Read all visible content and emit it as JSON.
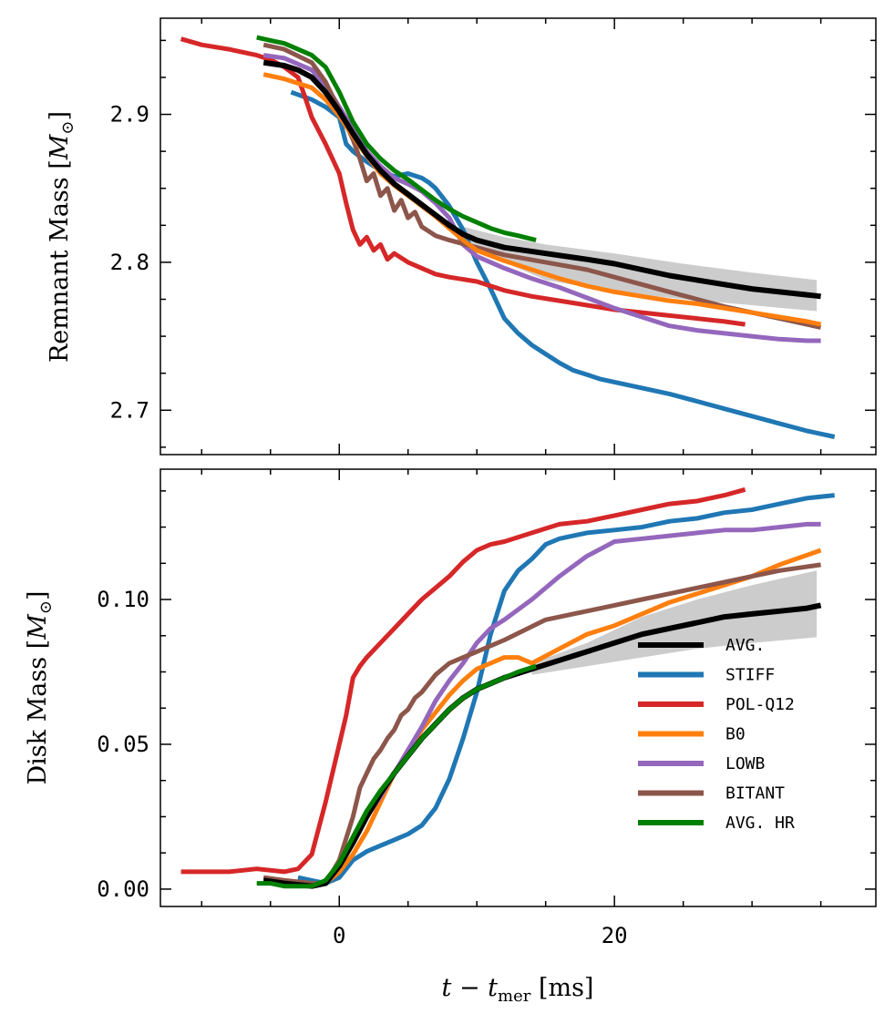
{
  "chart_data": [
    {
      "type": "line",
      "panel": "top",
      "title": "",
      "xlabel": "",
      "ylabel": "Remnant Mass [M_⊙]",
      "ylabel_text": "Remnant Mass ",
      "ylabel_unit": "M",
      "ylabel_sub": "⊙",
      "xlim": [
        -13,
        39
      ],
      "ylim": [
        2.67,
        2.965
      ],
      "yticks": [
        2.7,
        2.8,
        2.9
      ],
      "ytick_labels": [
        "2.7",
        "2.8",
        "2.9"
      ],
      "band": {
        "name": "AVG. spread",
        "color": "#cccccc",
        "x": [
          9,
          12,
          15,
          20,
          25,
          30,
          34.7
        ],
        "upper": [
          2.824,
          2.817,
          2.812,
          2.806,
          2.799,
          2.793,
          2.788
        ],
        "lower": [
          2.813,
          2.8,
          2.788,
          2.78,
          2.775,
          2.771,
          2.767
        ]
      },
      "series": [
        {
          "name": "STIFF",
          "color": "#1f77b4",
          "x": [
            -3.5,
            -2,
            -1,
            0,
            0.5,
            1,
            2,
            3,
            4,
            5,
            6,
            6.5,
            7,
            8,
            9,
            10,
            11,
            12,
            13,
            14,
            15,
            16,
            17,
            18,
            19,
            20,
            22,
            24,
            26,
            28,
            30,
            32,
            34,
            36
          ],
          "y": [
            2.915,
            2.91,
            2.905,
            2.898,
            2.88,
            2.875,
            2.868,
            2.862,
            2.858,
            2.86,
            2.857,
            2.854,
            2.85,
            2.838,
            2.822,
            2.8,
            2.782,
            2.762,
            2.752,
            2.744,
            2.738,
            2.732,
            2.727,
            2.724,
            2.721,
            2.719,
            2.715,
            2.711,
            2.706,
            2.701,
            2.696,
            2.691,
            2.686,
            2.682
          ]
        },
        {
          "name": "POL-Q12",
          "color": "#d62728",
          "x": [
            -11.5,
            -10,
            -8,
            -6,
            -5,
            -4,
            -3,
            -2.5,
            -2,
            -1,
            0,
            0.5,
            1,
            1.5,
            2,
            2.5,
            3,
            3.5,
            4,
            5,
            6,
            7,
            8,
            10,
            12,
            14,
            16,
            18,
            20,
            22,
            24,
            26,
            28,
            29.5
          ],
          "y": [
            2.951,
            2.947,
            2.944,
            2.94,
            2.937,
            2.932,
            2.925,
            2.912,
            2.898,
            2.88,
            2.86,
            2.84,
            2.822,
            2.812,
            2.817,
            2.808,
            2.812,
            2.802,
            2.806,
            2.8,
            2.796,
            2.792,
            2.79,
            2.787,
            2.781,
            2.777,
            2.774,
            2.771,
            2.768,
            2.766,
            2.764,
            2.762,
            2.76,
            2.758
          ]
        },
        {
          "name": "LOWB",
          "color": "#9467bd",
          "x": [
            -5.5,
            -4,
            -2,
            -1,
            0,
            1,
            2,
            3,
            4,
            5,
            6,
            7,
            8,
            9,
            10,
            12,
            14,
            16,
            18,
            20,
            22,
            24,
            26,
            28,
            30,
            32,
            34,
            35
          ],
          "y": [
            2.94,
            2.938,
            2.93,
            2.92,
            2.905,
            2.89,
            2.875,
            2.865,
            2.857,
            2.853,
            2.848,
            2.84,
            2.83,
            2.812,
            2.804,
            2.796,
            2.789,
            2.783,
            2.776,
            2.769,
            2.763,
            2.757,
            2.754,
            2.752,
            2.75,
            2.748,
            2.747,
            2.747
          ]
        },
        {
          "name": "BITANT",
          "color": "#8c564b",
          "x": [
            -5.5,
            -4,
            -2,
            -1,
            0,
            1,
            1.5,
            2,
            2.5,
            3,
            3.5,
            4,
            4.5,
            5,
            5.5,
            6,
            7,
            8,
            10,
            12,
            15,
            18,
            20,
            22,
            24,
            26,
            28,
            30,
            32,
            35
          ],
          "y": [
            2.947,
            2.944,
            2.935,
            2.922,
            2.903,
            2.883,
            2.87,
            2.855,
            2.86,
            2.845,
            2.85,
            2.835,
            2.842,
            2.83,
            2.834,
            2.824,
            2.818,
            2.815,
            2.81,
            2.805,
            2.8,
            2.795,
            2.79,
            2.785,
            2.78,
            2.775,
            2.77,
            2.766,
            2.762,
            2.756
          ]
        },
        {
          "name": "B0",
          "color": "#ff7f0e",
          "x": [
            -5.5,
            -4,
            -2,
            -1,
            0,
            1,
            2,
            3,
            4,
            5,
            6,
            7,
            8,
            9,
            10,
            12,
            14,
            16,
            18,
            20,
            22,
            24,
            26,
            28,
            30,
            32,
            34,
            35
          ],
          "y": [
            2.927,
            2.924,
            2.918,
            2.91,
            2.899,
            2.885,
            2.872,
            2.86,
            2.852,
            2.845,
            2.838,
            2.831,
            2.823,
            2.815,
            2.808,
            2.801,
            2.795,
            2.789,
            2.784,
            2.78,
            2.777,
            2.774,
            2.772,
            2.769,
            2.766,
            2.763,
            2.76,
            2.758
          ]
        },
        {
          "name": "AVG.",
          "color": "#000000",
          "x": [
            -5.5,
            -4,
            -3,
            -2,
            -1,
            0,
            1,
            2,
            3,
            4,
            5,
            6,
            7,
            8,
            9,
            10,
            12,
            15,
            18,
            20,
            22,
            24,
            26,
            28,
            30,
            32,
            34,
            35
          ],
          "y": [
            2.935,
            2.933,
            2.93,
            2.925,
            2.915,
            2.902,
            2.887,
            2.873,
            2.862,
            2.853,
            2.846,
            2.839,
            2.832,
            2.825,
            2.819,
            2.815,
            2.81,
            2.806,
            2.802,
            2.799,
            2.795,
            2.791,
            2.788,
            2.785,
            2.782,
            2.78,
            2.778,
            2.777
          ]
        },
        {
          "name": "AVG. HR",
          "color": "#008000",
          "x": [
            -6,
            -5,
            -4,
            -3,
            -2,
            -1,
            0,
            1,
            2,
            3,
            4,
            5,
            6,
            7,
            8,
            9,
            10,
            11,
            12,
            13,
            14.3
          ],
          "y": [
            2.952,
            2.95,
            2.948,
            2.944,
            2.94,
            2.932,
            2.915,
            2.895,
            2.88,
            2.87,
            2.862,
            2.856,
            2.849,
            2.842,
            2.836,
            2.831,
            2.827,
            2.823,
            2.82,
            2.818,
            2.815
          ]
        }
      ]
    },
    {
      "type": "line",
      "panel": "bottom",
      "title": "",
      "xlabel": "t − t_mer [ms]",
      "xlabel_t": "t",
      "xlabel_minus": " − ",
      "xlabel_tmer": "t",
      "xlabel_sub": "mer",
      "xlabel_unit": " [ms]",
      "ylabel": "Disk Mass [M_⊙]",
      "ylabel_text": "Disk Mass ",
      "ylabel_unit": "M",
      "ylabel_sub": "⊙",
      "xlim": [
        -13,
        39
      ],
      "ylim": [
        -0.006,
        0.145
      ],
      "xticks": [
        0,
        20
      ],
      "xtick_labels": [
        "0",
        "20"
      ],
      "yticks": [
        0.0,
        0.05,
        0.1
      ],
      "ytick_labels": [
        "0.00",
        "0.05",
        "0.10"
      ],
      "band": {
        "name": "AVG. spread",
        "color": "#cccccc",
        "x": [
          14,
          18,
          22,
          26,
          30,
          34.7
        ],
        "upper": [
          0.078,
          0.085,
          0.094,
          0.1,
          0.105,
          0.11
        ],
        "lower": [
          0.074,
          0.077,
          0.08,
          0.083,
          0.085,
          0.087
        ]
      },
      "series": [
        {
          "name": "STIFF",
          "color": "#1f77b4",
          "x": [
            -3,
            -2,
            -1,
            0,
            0.5,
            1,
            2,
            3,
            4,
            5,
            6,
            7,
            8,
            9,
            10,
            11,
            12,
            13,
            14,
            15,
            16,
            18,
            20,
            22,
            24,
            26,
            28,
            30,
            32,
            34,
            36
          ],
          "y": [
            0.004,
            0.003,
            0.002,
            0.004,
            0.007,
            0.01,
            0.013,
            0.015,
            0.017,
            0.019,
            0.022,
            0.028,
            0.038,
            0.052,
            0.068,
            0.088,
            0.103,
            0.11,
            0.114,
            0.119,
            0.121,
            0.123,
            0.124,
            0.125,
            0.127,
            0.128,
            0.13,
            0.131,
            0.133,
            0.135,
            0.136
          ]
        },
        {
          "name": "POL-Q12",
          "color": "#d62728",
          "x": [
            -11.5,
            -10,
            -8,
            -6,
            -4,
            -3,
            -2,
            -1,
            0,
            0.5,
            1,
            1.5,
            2,
            3,
            4,
            5,
            6,
            7,
            8,
            9,
            10,
            11,
            12,
            14,
            16,
            18,
            20,
            22,
            24,
            26,
            28,
            29.5
          ],
          "y": [
            0.006,
            0.006,
            0.006,
            0.007,
            0.006,
            0.007,
            0.012,
            0.03,
            0.05,
            0.06,
            0.073,
            0.077,
            0.08,
            0.085,
            0.09,
            0.095,
            0.1,
            0.104,
            0.108,
            0.113,
            0.117,
            0.119,
            0.12,
            0.123,
            0.126,
            0.127,
            0.129,
            0.131,
            0.133,
            0.134,
            0.136,
            0.138
          ]
        },
        {
          "name": "B0",
          "color": "#ff7f0e",
          "x": [
            -5.5,
            -4,
            -2,
            -1,
            0,
            1,
            2,
            3,
            4,
            5,
            6,
            7,
            8,
            9,
            10,
            11,
            12,
            13,
            14,
            16,
            18,
            20,
            22,
            24,
            26,
            28,
            30,
            32,
            35
          ],
          "y": [
            0.004,
            0.003,
            0.002,
            0.002,
            0.006,
            0.012,
            0.02,
            0.03,
            0.04,
            0.048,
            0.055,
            0.061,
            0.067,
            0.072,
            0.076,
            0.078,
            0.08,
            0.08,
            0.078,
            0.083,
            0.088,
            0.091,
            0.095,
            0.099,
            0.102,
            0.105,
            0.108,
            0.112,
            0.117
          ]
        },
        {
          "name": "LOWB",
          "color": "#9467bd",
          "x": [
            -5.5,
            -4,
            -2,
            -1,
            0,
            1,
            2,
            3,
            4,
            5,
            6,
            7,
            8,
            9,
            10,
            11,
            12,
            14,
            16,
            18,
            20,
            22,
            24,
            26,
            28,
            30,
            32,
            34,
            35
          ],
          "y": [
            0.003,
            0.002,
            0.002,
            0.002,
            0.008,
            0.016,
            0.025,
            0.032,
            0.04,
            0.048,
            0.056,
            0.065,
            0.072,
            0.078,
            0.085,
            0.09,
            0.093,
            0.1,
            0.108,
            0.115,
            0.12,
            0.121,
            0.122,
            0.123,
            0.124,
            0.124,
            0.125,
            0.126,
            0.126
          ]
        },
        {
          "name": "BITANT",
          "color": "#8c564b",
          "x": [
            -5.5,
            -4,
            -2,
            -1,
            0,
            1,
            1.5,
            2,
            2.5,
            3,
            3.5,
            4,
            4.5,
            5,
            5.5,
            6,
            7,
            8,
            10,
            12,
            15,
            18,
            20,
            22,
            24,
            26,
            28,
            30,
            32,
            35
          ],
          "y": [
            0.004,
            0.003,
            0.002,
            0.002,
            0.01,
            0.025,
            0.035,
            0.04,
            0.045,
            0.048,
            0.052,
            0.055,
            0.06,
            0.062,
            0.066,
            0.068,
            0.074,
            0.078,
            0.082,
            0.086,
            0.093,
            0.096,
            0.098,
            0.1,
            0.102,
            0.104,
            0.106,
            0.108,
            0.11,
            0.112
          ]
        },
        {
          "name": "AVG.",
          "color": "#000000",
          "x": [
            -5.5,
            -4,
            -2,
            -1,
            0,
            1,
            2,
            3,
            4,
            5,
            6,
            7,
            8,
            9,
            10,
            12,
            14,
            16,
            18,
            20,
            22,
            24,
            26,
            28,
            30,
            32,
            34,
            35
          ],
          "y": [
            0.003,
            0.002,
            0.001,
            0.002,
            0.008,
            0.016,
            0.025,
            0.033,
            0.04,
            0.046,
            0.052,
            0.057,
            0.062,
            0.066,
            0.069,
            0.073,
            0.076,
            0.079,
            0.082,
            0.085,
            0.088,
            0.09,
            0.092,
            0.094,
            0.095,
            0.096,
            0.097,
            0.098
          ]
        },
        {
          "name": "AVG. HR",
          "color": "#008000",
          "x": [
            -6,
            -5,
            -4,
            -3,
            -2,
            -1,
            0,
            1,
            2,
            3,
            4,
            5,
            6,
            7,
            8,
            9,
            10,
            11,
            12,
            13,
            14.3
          ],
          "y": [
            0.002,
            0.002,
            0.001,
            0.001,
            0.001,
            0.003,
            0.009,
            0.018,
            0.027,
            0.034,
            0.04,
            0.046,
            0.052,
            0.057,
            0.062,
            0.066,
            0.069,
            0.071,
            0.073,
            0.075,
            0.077
          ]
        }
      ],
      "legend": {
        "position": "lower-right",
        "entries": [
          {
            "label": "AVG.",
            "color": "#000000"
          },
          {
            "label": "STIFF",
            "color": "#1f77b4"
          },
          {
            "label": "POL-Q12",
            "color": "#d62728"
          },
          {
            "label": "B0",
            "color": "#ff7f0e"
          },
          {
            "label": "LOWB",
            "color": "#9467bd"
          },
          {
            "label": "BITANT",
            "color": "#8c564b"
          },
          {
            "label": "AVG. HR",
            "color": "#008000"
          }
        ]
      }
    }
  ]
}
